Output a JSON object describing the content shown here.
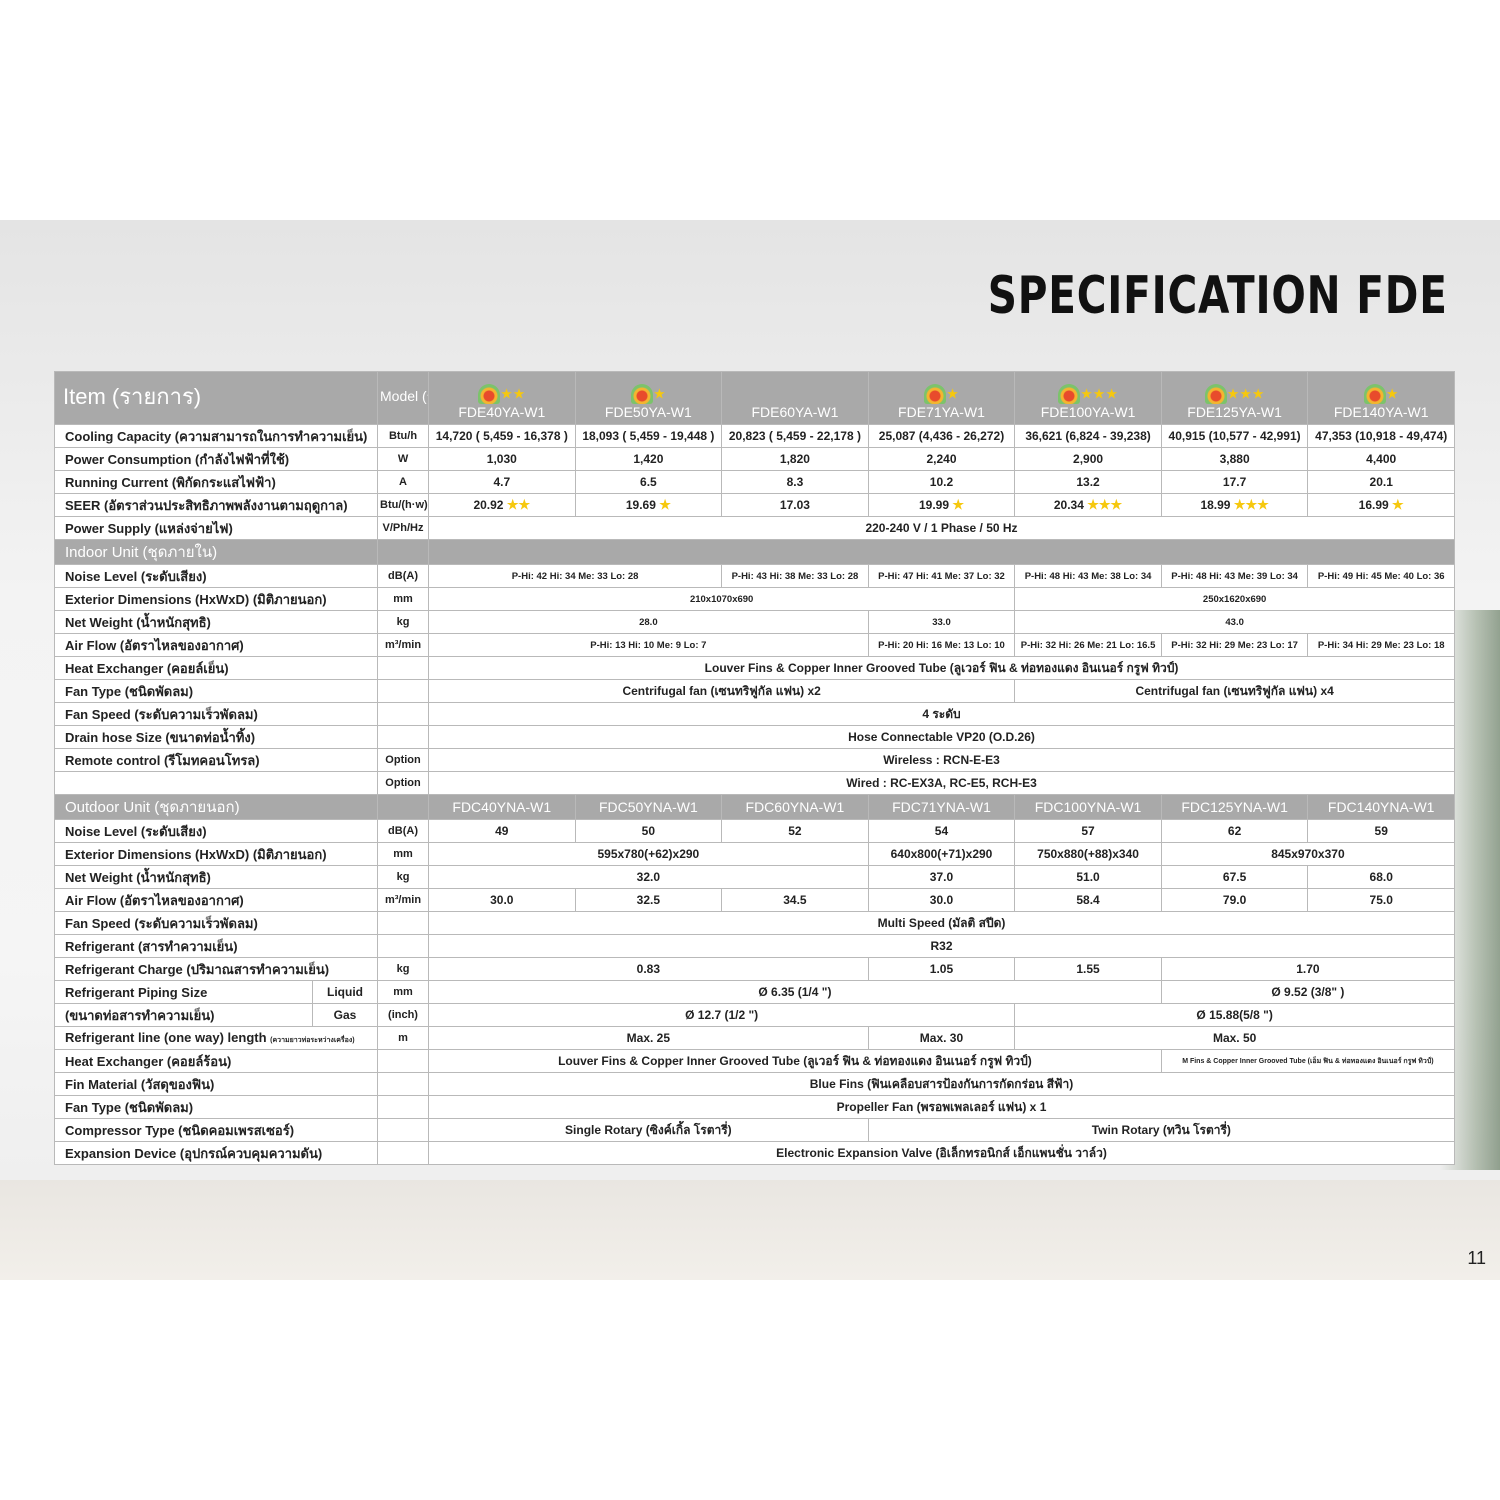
{
  "title": "SPECIFICATION FDE",
  "page_number": "11",
  "colors": {
    "header_gray": "#a9a9a9",
    "star": "#f6c80e"
  },
  "header": {
    "item_label": "Item (รายการ)",
    "model_label": "Model (รุ่น)",
    "indoor_models": [
      {
        "name": "FDE40YA-W1",
        "stars": 2,
        "energy_label": true
      },
      {
        "name": "FDE50YA-W1",
        "stars": 1,
        "energy_label": true
      },
      {
        "name": "FDE60YA-W1",
        "stars": 0,
        "energy_label": false
      },
      {
        "name": "FDE71YA-W1",
        "stars": 1,
        "energy_label": true
      },
      {
        "name": "FDE100YA-W1",
        "stars": 3,
        "energy_label": true
      },
      {
        "name": "FDE125YA-W1",
        "stars": 3,
        "energy_label": true
      },
      {
        "name": "FDE140YA-W1",
        "stars": 1,
        "energy_label": true
      }
    ]
  },
  "general_rows": [
    {
      "label": "Cooling Capacity (ความสามารถในการทำความเย็น)",
      "unit": "Btu/h",
      "cells": [
        {
          "text": "14,720 ( 5,459  - 16,378 )",
          "span": 1
        },
        {
          "text": "18,093 ( 5,459 - 19,448 )",
          "span": 1
        },
        {
          "text": "20,823 ( 5,459 - 22,178 )",
          "span": 1
        },
        {
          "text": "25,087 (4,436 - 26,272)",
          "span": 1
        },
        {
          "text": "36,621 (6,824 - 39,238)",
          "span": 1
        },
        {
          "text": "40,915 (10,577 - 42,991)",
          "span": 1
        },
        {
          "text": "47,353 (10,918 - 49,474)",
          "span": 1
        }
      ]
    },
    {
      "label": "Power Consumption (กำลังไฟฟ้าที่ใช้)",
      "unit": "W",
      "cells": [
        {
          "text": "1,030",
          "span": 1
        },
        {
          "text": "1,420",
          "span": 1
        },
        {
          "text": "1,820",
          "span": 1
        },
        {
          "text": "2,240",
          "span": 1
        },
        {
          "text": "2,900",
          "span": 1
        },
        {
          "text": "3,880",
          "span": 1
        },
        {
          "text": "4,400",
          "span": 1
        }
      ]
    },
    {
      "label": "Running Current (พิกัดกระแสไฟฟ้า)",
      "unit": "A",
      "cells": [
        {
          "text": "4.7",
          "span": 1
        },
        {
          "text": "6.5",
          "span": 1
        },
        {
          "text": "8.3",
          "span": 1
        },
        {
          "text": "10.2",
          "span": 1
        },
        {
          "text": "13.2",
          "span": 1
        },
        {
          "text": "17.7",
          "span": 1
        },
        {
          "text": "20.1",
          "span": 1
        }
      ]
    },
    {
      "label": "SEER (อัตราส่วนประสิทธิภาพพลังงานตามฤดูกาล)",
      "unit": "Btu/(h·w)",
      "cells": [
        {
          "text": "20.92",
          "span": 1,
          "stars": 2
        },
        {
          "text": "19.69",
          "span": 1,
          "stars": 1
        },
        {
          "text": "17.03",
          "span": 1,
          "stars": 0
        },
        {
          "text": "19.99",
          "span": 1,
          "stars": 1
        },
        {
          "text": "20.34",
          "span": 1,
          "stars": 3
        },
        {
          "text": "18.99",
          "span": 1,
          "stars": 3
        },
        {
          "text": "16.99",
          "span": 1,
          "stars": 1
        }
      ]
    },
    {
      "label": "Power Supply (แหล่งจ่ายไฟ)",
      "unit": "V/Ph/Hz",
      "cells": [
        {
          "text": "220-240 V / 1 Phase / 50 Hz",
          "span": 7
        }
      ]
    }
  ],
  "indoor": {
    "section_label": "Indoor Unit (ชุดภายใน)",
    "rows": [
      {
        "label": "Noise Level (ระดับเสียง)",
        "unit": "dB(A)",
        "size": "small",
        "cells": [
          {
            "text": "P-Hi: 42 Hi: 34  Me: 33 Lo: 28",
            "span": 2
          },
          {
            "text": "P-Hi: 43 Hi: 38  Me: 33 Lo: 28",
            "span": 1
          },
          {
            "text": "P-Hi: 47 Hi: 41  Me: 37 Lo: 32",
            "span": 1
          },
          {
            "text": "P-Hi: 48 Hi: 43  Me: 38 Lo: 34",
            "span": 1
          },
          {
            "text": "P-Hi: 48 Hi: 43  Me: 39 Lo: 34",
            "span": 1
          },
          {
            "text": "P-Hi: 49 Hi: 45  Me: 40 Lo: 36",
            "span": 1
          }
        ]
      },
      {
        "label": "Exterior Dimensions (HxWxD) (มิติภายนอก)",
        "unit": "mm",
        "size": "small",
        "cells": [
          {
            "text": "210x1070x690",
            "span": 4
          },
          {
            "text": "250x1620x690",
            "span": 3
          }
        ]
      },
      {
        "label": "Net Weight (น้ำหนักสุทธิ)",
        "unit": "kg",
        "size": "small",
        "cells": [
          {
            "text": "28.0",
            "span": 3
          },
          {
            "text": "33.0",
            "span": 1
          },
          {
            "text": "43.0",
            "span": 3
          }
        ]
      },
      {
        "label": "Air Flow (อัตราไหลของอากาศ)",
        "unit": "m³/min",
        "size": "small",
        "cells": [
          {
            "text": "P-Hi: 13 Hi: 10 Me: 9 Lo: 7",
            "span": 3
          },
          {
            "text": "P-Hi: 20 Hi: 16 Me: 13 Lo: 10",
            "span": 1
          },
          {
            "text": "P-Hi: 32 Hi: 26 Me: 21 Lo: 16.5",
            "span": 1
          },
          {
            "text": "P-Hi: 32 Hi: 29 Me: 23 Lo: 17",
            "span": 1
          },
          {
            "text": "P-Hi: 34 Hi: 29 Me: 23 Lo: 18",
            "span": 1
          }
        ]
      },
      {
        "label": "Heat Exchanger (คอยล์เย็น)",
        "unit": "",
        "cells": [
          {
            "text": "Louver Fins & Copper Inner Grooved Tube (ลูเวอร์ ฟิน & ท่อทองแดง อินเนอร์ กรูฟ ทิวป์)",
            "span": 7
          }
        ]
      },
      {
        "label": "Fan Type (ชนิดพัดลม)",
        "unit": "",
        "cells": [
          {
            "text": "Centrifugal fan (เซนทริฟูกัล แฟน) x2",
            "span": 4
          },
          {
            "text": "Centrifugal fan (เซนทริฟูกัล แฟน) x4",
            "span": 3
          }
        ]
      },
      {
        "label": "Fan Speed (ระดับความเร็วพัดลม)",
        "unit": "",
        "cells": [
          {
            "text": "4 ระดับ",
            "span": 7
          }
        ]
      },
      {
        "label": "Drain hose Size (ขนาดท่อน้ำทิ้ง)",
        "unit": "",
        "cells": [
          {
            "text": "Hose Connectable VP20 (O.D.26)",
            "span": 7
          }
        ]
      },
      {
        "label": "Remote control (รีโมทคอนโทรล)",
        "unit": "Option",
        "cells": [
          {
            "text": "Wireless : RCN-E-E3",
            "span": 7
          }
        ]
      },
      {
        "label": "",
        "unit": "Option",
        "cells": [
          {
            "text": "Wired : RC-EX3A, RC-E5, RCH-E3",
            "span": 7
          }
        ]
      }
    ]
  },
  "outdoor": {
    "section_label": "Outdoor Unit (ชุดภายนอก)",
    "models": [
      "FDC40YNA-W1",
      "FDC50YNA-W1",
      "FDC60YNA-W1",
      "FDC71YNA-W1",
      "FDC100YNA-W1",
      "FDC125YNA-W1",
      "FDC140YNA-W1"
    ],
    "rows": [
      {
        "label": "Noise Level (ระดับเสียง)",
        "unit": "dB(A)",
        "cells": [
          {
            "text": "49",
            "span": 1
          },
          {
            "text": "50",
            "span": 1
          },
          {
            "text": "52",
            "span": 1
          },
          {
            "text": "54",
            "span": 1
          },
          {
            "text": "57",
            "span": 1
          },
          {
            "text": "62",
            "span": 1
          },
          {
            "text": "59",
            "span": 1
          }
        ]
      },
      {
        "label": "Exterior Dimensions (HxWxD) (มิติภายนอก)",
        "unit": "mm",
        "cells": [
          {
            "text": "595x780(+62)x290",
            "span": 3
          },
          {
            "text": "640x800(+71)x290",
            "span": 1
          },
          {
            "text": "750x880(+88)x340",
            "span": 1
          },
          {
            "text": "845x970x370",
            "span": 2
          }
        ]
      },
      {
        "label": "Net Weight (น้ำหนักสุทธิ)",
        "unit": "kg",
        "cells": [
          {
            "text": "32.0",
            "span": 3
          },
          {
            "text": "37.0",
            "span": 1
          },
          {
            "text": "51.0",
            "span": 1
          },
          {
            "text": "67.5",
            "span": 1
          },
          {
            "text": "68.0",
            "span": 1
          }
        ]
      },
      {
        "label": "Air Flow (อัตราไหลของอากาศ)",
        "unit": "m³/min",
        "cells": [
          {
            "text": "30.0",
            "span": 1
          },
          {
            "text": "32.5",
            "span": 1
          },
          {
            "text": "34.5",
            "span": 1
          },
          {
            "text": "30.0",
            "span": 1
          },
          {
            "text": "58.4",
            "span": 1
          },
          {
            "text": "79.0",
            "span": 1
          },
          {
            "text": "75.0",
            "span": 1
          }
        ]
      },
      {
        "label": "Fan Speed (ระดับความเร็วพัดลม)",
        "unit": "",
        "cells": [
          {
            "text": "Multi Speed (มัลติ สปีด)",
            "span": 7
          }
        ]
      },
      {
        "label": "Refrigerant (สารทำความเย็น)",
        "unit": "",
        "cells": [
          {
            "text": "R32",
            "span": 7
          }
        ]
      },
      {
        "label": "Refrigerant Charge (ปริมาณสารทำความเย็น)",
        "unit": "kg",
        "cells": [
          {
            "text": "0.83",
            "span": 3
          },
          {
            "text": "1.05",
            "span": 1
          },
          {
            "text": "1.55",
            "span": 1
          },
          {
            "text": "1.70",
            "span": 2
          }
        ]
      },
      {
        "label": "Refrigerant Piping Size",
        "sublabel": "Liquid",
        "unit": "mm",
        "cells": [
          {
            "text": "Ø 6.35 (1/4 \")",
            "span": 5
          },
          {
            "text": "Ø 9.52 (3/8\" )",
            "span": 2
          }
        ]
      },
      {
        "label": "(ขนาดท่อสารทำความเย็น)",
        "sublabel": "Gas",
        "unit": "(inch)",
        "cells": [
          {
            "text": "Ø 12.7 (1/2 \")",
            "span": 4
          },
          {
            "text": "Ø 15.88(5/8 \")",
            "span": 3
          }
        ]
      },
      {
        "label": "Refrigerant line (one way) length",
        "label_note": "(ความยาวท่อระหว่างเครื่อง)",
        "unit": "m",
        "cells": [
          {
            "text": "Max. 25",
            "span": 3
          },
          {
            "text": "Max. 30",
            "span": 1
          },
          {
            "text": "Max. 50",
            "span": 3
          }
        ]
      },
      {
        "label": "Heat Exchanger (คอยล์ร้อน)",
        "unit": "",
        "cells": [
          {
            "text": "Louver Fins & Copper Inner Grooved Tube (ลูเวอร์ ฟิน & ท่อทองแดง อินเนอร์ กรูฟ ทิวป์)",
            "span": 5
          },
          {
            "text": "M Fins & Copper Inner Grooved Tube (เอ็ม ฟิน & ท่อทองแดง อินเนอร์ กรูฟ ทิวป์)",
            "span": 2,
            "size": "tiny"
          }
        ]
      },
      {
        "label": "Fin Material (วัสดุของฟิน)",
        "unit": "",
        "cells": [
          {
            "text": "Blue Fins (ฟินเคลือบสารป้องกันการกัดกร่อน สีฟ้า)",
            "span": 7
          }
        ]
      },
      {
        "label": "Fan Type (ชนิดพัดลม)",
        "unit": "",
        "cells": [
          {
            "text": "Propeller Fan (พรอพเพลเลอร์ แฟน) x 1",
            "span": 7
          }
        ]
      },
      {
        "label": "Compressor Type (ชนิดคอมเพรสเซอร์)",
        "unit": "",
        "cells": [
          {
            "text": "Single Rotary (ซิงค์เกิ้ล โรตารี่)",
            "span": 3
          },
          {
            "text": "Twin Rotary (ทวิน โรตารี่)",
            "span": 4
          }
        ]
      },
      {
        "label": "Expansion Device (อุปกรณ์ควบคุมความดัน)",
        "unit": "",
        "cells": [
          {
            "text": "Electronic Expansion Valve (อิเล็กทรอนิกส์ เอ็กแพนชั่น วาล์ว)",
            "span": 7
          }
        ]
      }
    ]
  }
}
